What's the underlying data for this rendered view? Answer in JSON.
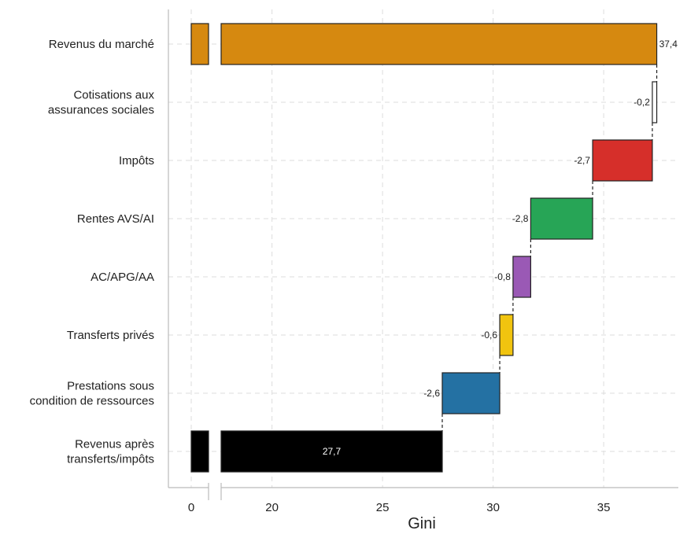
{
  "chart_data": {
    "type": "bar",
    "subtype": "waterfall-horizontal",
    "title": "",
    "xlabel": "Gini",
    "ylabel": "",
    "xlim": [
      0,
      40
    ],
    "axis_break": [
      0,
      17.7
    ],
    "xticks": [
      "0",
      "20",
      "25",
      "30",
      "35",
      "40"
    ],
    "grid": true,
    "legend": "none",
    "categories": [
      [
        "Revenus du marché"
      ],
      [
        "Cotisations aux",
        "assurances sociales"
      ],
      [
        "Impôts"
      ],
      [
        "Rentes AVS/AI"
      ],
      [
        "AC/APG/AA"
      ],
      [
        "Transferts privés"
      ],
      [
        "Prestations sous",
        "condition de ressources"
      ],
      [
        "Revenus après",
        "transferts/impôts"
      ]
    ],
    "bars": [
      {
        "start": 0,
        "end": 37.4,
        "value": 37.4,
        "label": "37,4",
        "color": "#D68910",
        "kind": "total"
      },
      {
        "start": 37.2,
        "end": 37.4,
        "value": -0.2,
        "label": "-0,2",
        "color": "#FFFFFF",
        "kind": "delta"
      },
      {
        "start": 34.5,
        "end": 37.2,
        "value": -2.7,
        "label": "-2,7",
        "color": "#D62F2A",
        "kind": "delta"
      },
      {
        "start": 31.7,
        "end": 34.5,
        "value": -2.8,
        "label": "-2,8",
        "color": "#27A556",
        "kind": "delta"
      },
      {
        "start": 30.9,
        "end": 31.7,
        "value": -0.8,
        "label": "-0,8",
        "color": "#9A59B5",
        "kind": "delta"
      },
      {
        "start": 30.3,
        "end": 30.9,
        "value": -0.6,
        "label": "-0,6",
        "color": "#F1C40F",
        "kind": "delta"
      },
      {
        "start": 27.7,
        "end": 30.3,
        "value": -2.6,
        "label": "-2,6",
        "color": "#2471A3",
        "kind": "delta"
      },
      {
        "start": 0,
        "end": 27.7,
        "value": 27.7,
        "label": "27,7",
        "color": "#000000",
        "kind": "total"
      }
    ]
  }
}
